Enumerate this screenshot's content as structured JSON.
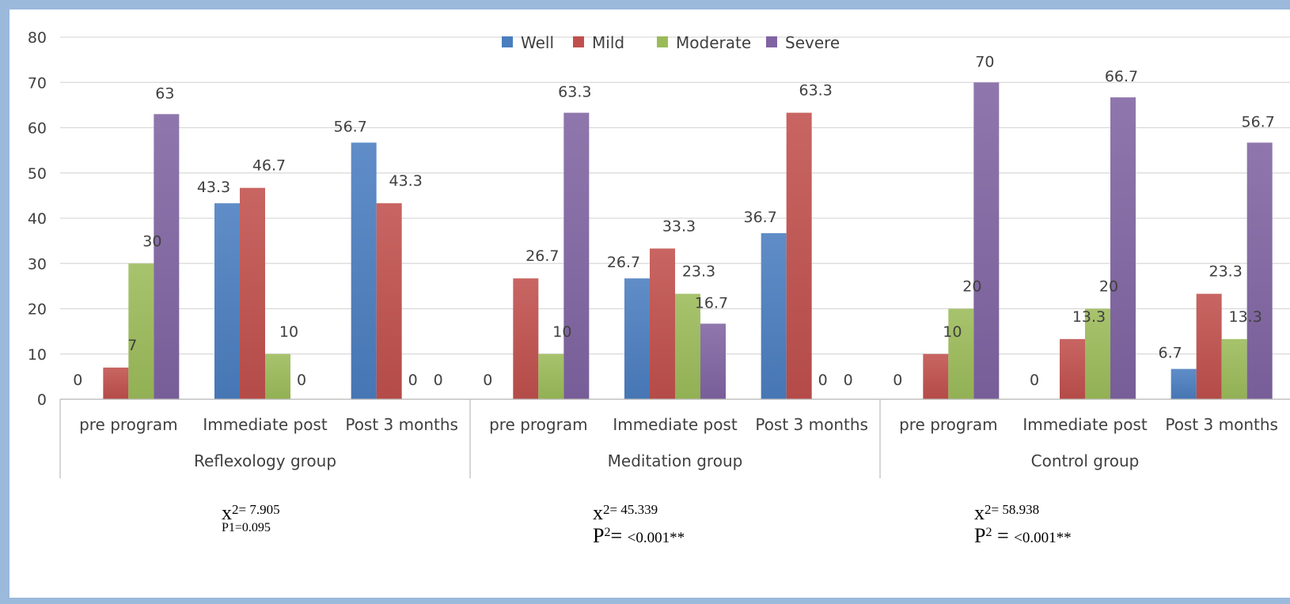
{
  "chart_data": {
    "type": "bar",
    "ylim": [
      0,
      80
    ],
    "yticks": [
      0,
      10,
      20,
      30,
      40,
      50,
      60,
      70,
      80
    ],
    "legend_position": "top-center",
    "grid": true,
    "series": [
      {
        "name": "Well",
        "color": "#4a7ebf"
      },
      {
        "name": "Mild",
        "color": "#c0504d"
      },
      {
        "name": "Moderate",
        "color": "#9bbb59"
      },
      {
        "name": "Severe",
        "color": "#8064a2"
      }
    ],
    "groups": [
      {
        "name": "Reflexology group",
        "categories": [
          {
            "label": "pre program",
            "values": [
              0,
              7,
              30,
              63
            ],
            "labels": [
              "0",
              "7",
              "30",
              "63"
            ]
          },
          {
            "label": "Immediate post",
            "values": [
              43.3,
              46.7,
              10,
              0
            ],
            "labels": [
              "43.3",
              "46.7",
              "10",
              "0"
            ]
          },
          {
            "label": "Post 3 months",
            "values": [
              56.7,
              43.3,
              0,
              0
            ],
            "labels": [
              "56.7",
              "43.3",
              "0",
              "0"
            ]
          }
        ]
      },
      {
        "name": "Meditation group",
        "categories": [
          {
            "label": "pre program",
            "values": [
              0,
              26.7,
              10,
              63.3
            ],
            "labels": [
              "0",
              "26.7",
              "10",
              "63.3"
            ]
          },
          {
            "label": "Immediate post",
            "values": [
              26.7,
              33.3,
              23.3,
              16.7
            ],
            "labels": [
              "26.7",
              "33.3",
              "23.3",
              "16.7"
            ]
          },
          {
            "label": "Post 3 months",
            "values": [
              36.7,
              63.3,
              0,
              0
            ],
            "labels": [
              "36.7",
              "63.3",
              "0",
              "0"
            ]
          }
        ]
      },
      {
        "name": "Control group",
        "categories": [
          {
            "label": "pre program",
            "values": [
              0,
              10,
              20,
              70
            ],
            "labels": [
              "0",
              "10",
              "20",
              "70"
            ]
          },
          {
            "label": "Immediate post",
            "values": [
              0,
              13.3,
              20,
              66.7
            ],
            "labels": [
              "0",
              "13.3",
              "20",
              "66.7"
            ]
          },
          {
            "label": "Post 3 months",
            "values": [
              6.7,
              23.3,
              13.3,
              56.7
            ],
            "labels": [
              "6.7",
              "23.3",
              "13.3",
              "56.7"
            ]
          }
        ]
      }
    ]
  },
  "stats": [
    {
      "x_symbol": "x",
      "x_value": "= 7.905",
      "p_text": "P1=0.095"
    },
    {
      "x_symbol": "x",
      "x_value": "= 45.339",
      "p_symbol": "P",
      "p_sup": "2",
      "p_eq": "= ",
      "p_value": "<0.001**"
    },
    {
      "x_symbol": "x",
      "x_value": "= 58.938",
      "p_symbol": "P",
      "p_sup": "2",
      "p_eq": " = ",
      "p_value": "<0.001**"
    }
  ],
  "x_sup": "2"
}
